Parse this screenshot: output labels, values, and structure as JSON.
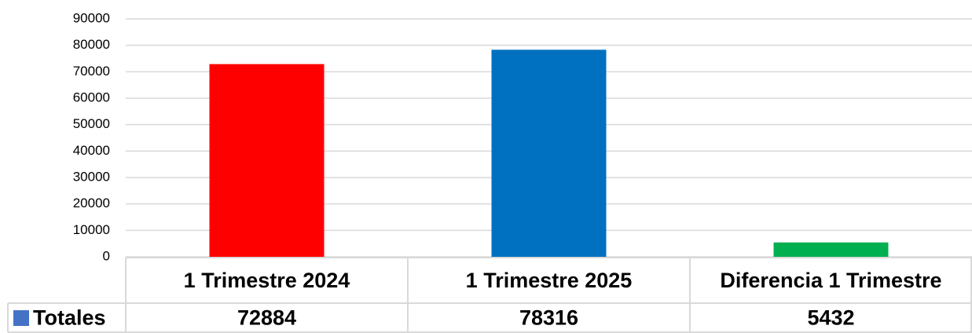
{
  "chart_data": {
    "type": "bar",
    "categories": [
      "1 Trimestre 2024",
      "1 Trimestre 2025",
      "Diferencia 1 Trimestre"
    ],
    "series": [
      {
        "name": "Totales",
        "color": "#4472c4",
        "point_colors": [
          "#ff0000",
          "#0070c0",
          "#00b050"
        ],
        "values": [
          72884,
          78316,
          5432
        ]
      }
    ],
    "ylim": [
      0,
      90000
    ],
    "yticks": [
      0,
      10000,
      20000,
      30000,
      40000,
      50000,
      60000,
      70000,
      80000,
      90000
    ],
    "grid": true,
    "data_table": true
  }
}
